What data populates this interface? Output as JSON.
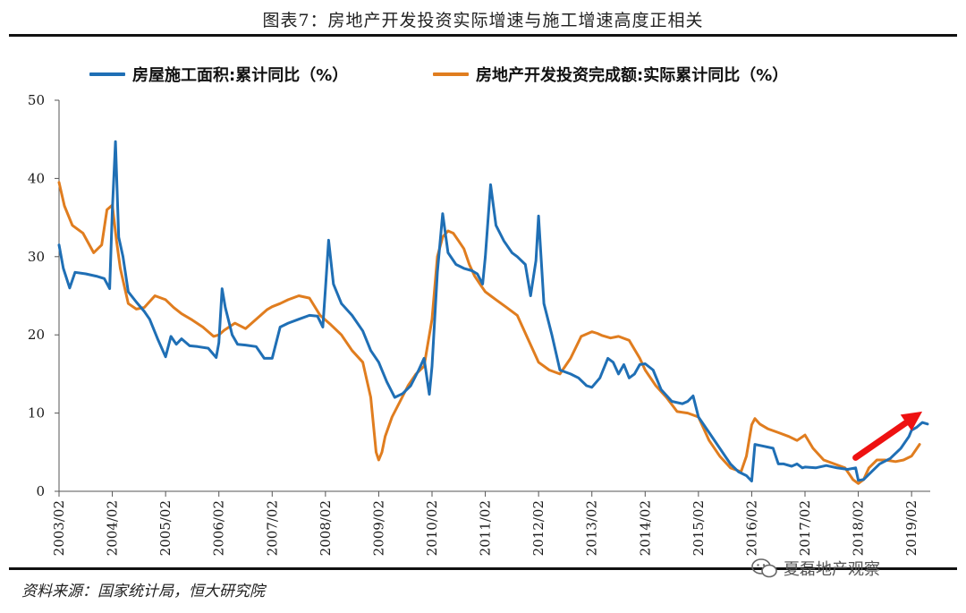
{
  "title": "图表7：房地产开发投资实际增速与施工增速高度正相关",
  "source": "资料来源：国家统计局，恒大研究院",
  "watermark": "夏磊地产观察",
  "chart_data": {
    "type": "line",
    "title": "图表7：房地产开发投资实际增速与施工增速高度正相关",
    "xlabel": "",
    "ylabel": "",
    "ylim": [
      0,
      50
    ],
    "yticks": [
      0,
      10,
      20,
      30,
      40,
      50
    ],
    "xlim": [
      2003.0,
      2019.35
    ],
    "xticks": [
      "2003/02",
      "2004/02",
      "2005/02",
      "2006/02",
      "2007/02",
      "2008/02",
      "2009/02",
      "2010/02",
      "2011/02",
      "2012/02",
      "2013/02",
      "2014/02",
      "2015/02",
      "2016/02",
      "2017/02",
      "2018/02",
      "2019/02"
    ],
    "grid": false,
    "legend_position": "top",
    "series": [
      {
        "name": "房屋施工面积:累计同比（%）",
        "color": "#1f6fb5",
        "x": [
          2003.0,
          2003.08,
          2003.2,
          2003.3,
          2003.5,
          2003.7,
          2003.85,
          2003.95,
          2004.0,
          2004.06,
          2004.12,
          2004.2,
          2004.3,
          2004.45,
          2004.6,
          2004.7,
          2004.85,
          2005.0,
          2005.1,
          2005.2,
          2005.3,
          2005.45,
          2005.6,
          2005.8,
          2005.95,
          2006.0,
          2006.06,
          2006.12,
          2006.25,
          2006.35,
          2006.5,
          2006.7,
          2006.85,
          2007.0,
          2007.15,
          2007.3,
          2007.5,
          2007.7,
          2007.85,
          2007.95,
          2008.0,
          2008.06,
          2008.15,
          2008.3,
          2008.5,
          2008.7,
          2008.85,
          2009.0,
          2009.15,
          2009.3,
          2009.45,
          2009.6,
          2009.75,
          2009.85,
          2009.95,
          2010.0,
          2010.1,
          2010.2,
          2010.3,
          2010.45,
          2010.6,
          2010.75,
          2010.85,
          2010.95,
          2011.0,
          2011.1,
          2011.2,
          2011.35,
          2011.5,
          2011.6,
          2011.75,
          2011.85,
          2011.95,
          2012.0,
          2012.1,
          2012.25,
          2012.4,
          2012.6,
          2012.75,
          2012.9,
          2013.0,
          2013.15,
          2013.3,
          2013.4,
          2013.5,
          2013.6,
          2013.7,
          2013.8,
          2013.9,
          2014.0,
          2014.15,
          2014.3,
          2014.5,
          2014.7,
          2014.8,
          2014.9,
          2015.0,
          2015.2,
          2015.4,
          2015.6,
          2015.75,
          2015.9,
          2016.0,
          2016.06,
          2016.2,
          2016.4,
          2016.5,
          2016.6,
          2016.75,
          2016.85,
          2016.95,
          2017.0,
          2017.2,
          2017.4,
          2017.6,
          2017.8,
          2017.95,
          2018.0,
          2018.1,
          2018.25,
          2018.4,
          2018.6,
          2018.8,
          2018.95,
          2019.0,
          2019.1,
          2019.2,
          2019.3
        ],
        "values": [
          31.5,
          28.5,
          26.0,
          28.0,
          27.8,
          27.5,
          27.2,
          25.9,
          36.0,
          44.7,
          32.5,
          30.0,
          25.5,
          24.2,
          23.0,
          22.0,
          19.5,
          17.2,
          19.8,
          18.8,
          19.5,
          18.6,
          18.5,
          18.3,
          17.1,
          19.0,
          25.9,
          23.5,
          20.0,
          18.8,
          18.7,
          18.5,
          17.0,
          17.0,
          21.0,
          21.5,
          22.0,
          22.5,
          22.4,
          21.0,
          26.0,
          32.1,
          26.5,
          24.0,
          22.5,
          20.5,
          18.0,
          16.5,
          14.0,
          12.0,
          12.5,
          13.5,
          15.5,
          17.0,
          12.4,
          16.0,
          28.0,
          35.5,
          30.5,
          29.0,
          28.5,
          28.2,
          27.8,
          26.5,
          30.0,
          39.2,
          34.0,
          32.0,
          30.5,
          30.0,
          29.0,
          25.0,
          29.5,
          35.2,
          24.0,
          20.0,
          15.5,
          15.0,
          14.5,
          13.5,
          13.3,
          14.5,
          17.0,
          16.5,
          15.0,
          16.2,
          14.5,
          15.0,
          16.2,
          16.3,
          15.5,
          13.0,
          11.5,
          11.2,
          11.5,
          12.2,
          9.5,
          7.5,
          5.5,
          3.5,
          2.5,
          2.0,
          1.3,
          6.0,
          5.8,
          5.5,
          3.5,
          3.5,
          3.2,
          3.5,
          3.0,
          3.1,
          3.0,
          3.3,
          3.0,
          2.8,
          3.0,
          1.4,
          1.5,
          2.5,
          3.5,
          4.2,
          5.5,
          7.0,
          7.8,
          8.2,
          8.8,
          8.6
        ]
      },
      {
        "name": "房地产开发投资完成额:实际累计同比（%）",
        "color": "#e07d1f",
        "x": [
          2003.0,
          2003.1,
          2003.25,
          2003.45,
          2003.65,
          2003.8,
          2003.9,
          2004.0,
          2004.08,
          2004.15,
          2004.3,
          2004.45,
          2004.6,
          2004.8,
          2005.0,
          2005.15,
          2005.3,
          2005.5,
          2005.7,
          2005.9,
          2006.0,
          2006.1,
          2006.3,
          2006.5,
          2006.7,
          2006.9,
          2007.0,
          2007.15,
          2007.3,
          2007.5,
          2007.7,
          2007.9,
          2008.0,
          2008.1,
          2008.3,
          2008.5,
          2008.7,
          2008.85,
          2008.95,
          2009.0,
          2009.06,
          2009.12,
          2009.25,
          2009.4,
          2009.55,
          2009.7,
          2009.85,
          2010.0,
          2010.1,
          2010.2,
          2010.3,
          2010.4,
          2010.5,
          2010.6,
          2010.7,
          2010.8,
          2010.9,
          2011.0,
          2011.1,
          2011.2,
          2011.4,
          2011.6,
          2011.8,
          2012.0,
          2012.2,
          2012.4,
          2012.6,
          2012.8,
          2013.0,
          2013.1,
          2013.2,
          2013.35,
          2013.5,
          2013.7,
          2013.9,
          2014.0,
          2014.2,
          2014.4,
          2014.6,
          2014.8,
          2015.0,
          2015.2,
          2015.4,
          2015.6,
          2015.8,
          2015.9,
          2016.0,
          2016.06,
          2016.15,
          2016.3,
          2016.5,
          2016.7,
          2016.85,
          2017.0,
          2017.15,
          2017.35,
          2017.55,
          2017.75,
          2017.9,
          2018.0,
          2018.1,
          2018.2,
          2018.35,
          2018.5,
          2018.7,
          2018.85,
          2019.0,
          2019.15
        ],
        "values": [
          39.5,
          36.5,
          34.0,
          33.0,
          30.5,
          31.5,
          36.0,
          36.6,
          32.0,
          28.5,
          24.0,
          23.3,
          23.5,
          25.0,
          24.5,
          23.5,
          22.7,
          21.9,
          21.0,
          19.8,
          20.0,
          20.6,
          21.5,
          20.8,
          22.0,
          23.2,
          23.6,
          24.0,
          24.5,
          25.0,
          24.7,
          22.5,
          21.9,
          21.3,
          20.0,
          18.0,
          16.5,
          12.0,
          5.0,
          4.0,
          5.0,
          7.0,
          9.5,
          11.5,
          13.5,
          15.0,
          16.0,
          22.0,
          30.0,
          32.5,
          33.3,
          33.0,
          32.0,
          31.0,
          29.0,
          27.5,
          26.5,
          25.5,
          25.0,
          24.5,
          23.5,
          22.5,
          19.5,
          16.5,
          15.5,
          15.0,
          17.0,
          19.8,
          20.4,
          20.2,
          19.9,
          19.6,
          19.8,
          19.3,
          17.0,
          15.5,
          13.5,
          12.0,
          10.2,
          10.0,
          9.5,
          6.5,
          4.5,
          3.0,
          2.5,
          4.5,
          8.5,
          9.3,
          8.6,
          8.0,
          7.5,
          7.0,
          6.5,
          7.2,
          5.5,
          4.0,
          3.5,
          3.0,
          1.5,
          1.0,
          1.5,
          3.0,
          4.0,
          4.0,
          3.8,
          4.0,
          4.5,
          6.0
        ]
      }
    ]
  }
}
